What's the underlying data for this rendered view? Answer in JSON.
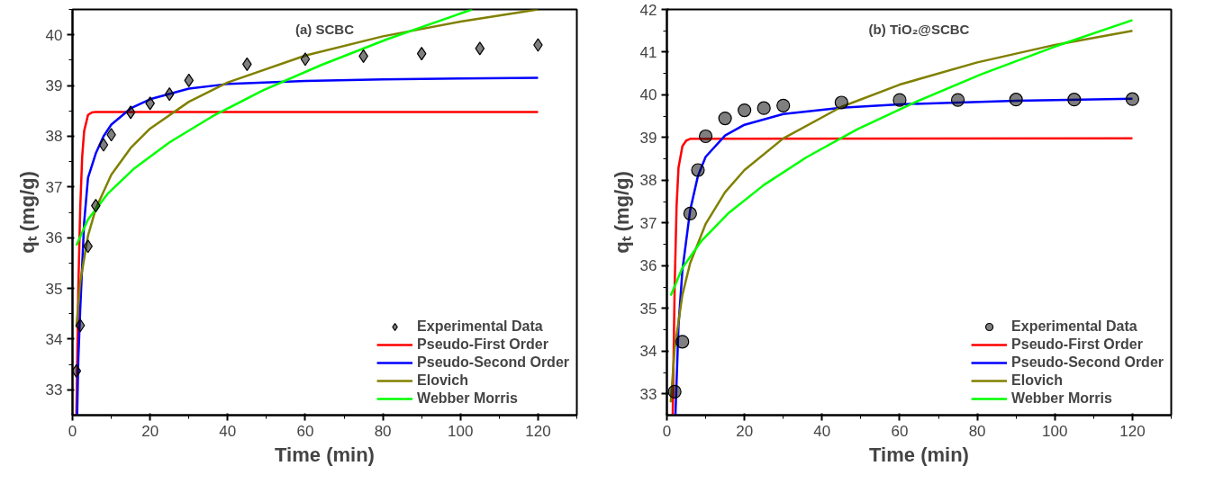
{
  "chart_data": [
    {
      "type": "line",
      "title": "(a) SCBC",
      "xlabel": "Time (min)",
      "ylabel": "qₜ (mg/g)",
      "xlim": [
        0,
        130
      ],
      "xticks": [
        0,
        20,
        40,
        60,
        80,
        100,
        120
      ],
      "ylim": [
        32.5,
        40.5
      ],
      "yticks": [
        33,
        34,
        35,
        36,
        37,
        38,
        39,
        40
      ],
      "grid": false,
      "legend": "bottom right",
      "series": [
        {
          "name": "Experimental Data",
          "type": "scatter",
          "marker": "diamond",
          "color": "#000000",
          "x": [
            1,
            2,
            4,
            6,
            8,
            10,
            15,
            20,
            25,
            30,
            45,
            60,
            75,
            90,
            105,
            120
          ],
          "values": [
            33.37,
            34.27,
            35.83,
            36.63,
            37.83,
            38.03,
            38.47,
            38.65,
            38.83,
            39.1,
            39.42,
            39.52,
            39.58,
            39.63,
            39.73,
            39.8
          ]
        },
        {
          "name": "Pseudo-First Order",
          "color": "#ff0000",
          "x": [
            1,
            1.5,
            2,
            2.5,
            3,
            4,
            5,
            6,
            120
          ],
          "values": [
            32.5,
            35.0,
            36.6,
            37.6,
            38.1,
            38.42,
            38.47,
            38.48,
            38.48
          ]
        },
        {
          "name": "Pseudo-Second Order",
          "color": "#0000ff",
          "x": [
            1.2,
            1.5,
            2,
            3,
            4,
            6,
            8,
            10,
            15,
            20,
            30,
            40,
            60,
            80,
            100,
            120
          ],
          "values": [
            32.5,
            33.6,
            34.6,
            36.3,
            37.18,
            37.66,
            38.0,
            38.23,
            38.55,
            38.73,
            38.94,
            39.03,
            39.09,
            39.12,
            39.14,
            39.15
          ]
        },
        {
          "name": "Elovich",
          "color": "#808000",
          "x": [
            1,
            2,
            4,
            6,
            10,
            15,
            20,
            30,
            40,
            60,
            80,
            100,
            120
          ],
          "values": [
            34.23,
            35.13,
            36.04,
            36.57,
            37.24,
            37.77,
            38.15,
            38.68,
            39.06,
            39.59,
            39.97,
            40.26,
            40.5
          ]
        },
        {
          "name": "Webber Morris",
          "color": "#00ff00",
          "x": [
            1,
            4,
            9,
            16,
            25,
            36,
            49,
            64,
            81,
            100,
            103
          ],
          "values": [
            35.85,
            36.36,
            36.86,
            37.37,
            37.88,
            38.39,
            38.9,
            39.4,
            39.91,
            40.42,
            40.5
          ]
        }
      ]
    },
    {
      "type": "line",
      "title": "(b) TiO₂@SCBC",
      "xlabel": "Time (min)",
      "ylabel": "qₜ (mg/g)",
      "xlim": [
        0,
        130
      ],
      "xticks": [
        0,
        20,
        40,
        60,
        80,
        100,
        120
      ],
      "ylim": [
        32.5,
        42
      ],
      "yticks": [
        33,
        34,
        35,
        36,
        37,
        38,
        39,
        40,
        41,
        42
      ],
      "grid": false,
      "legend": "bottom right",
      "series": [
        {
          "name": "Experimental Data",
          "type": "scatter",
          "marker": "circle",
          "color": "#000000",
          "x": [
            2,
            4,
            6,
            8,
            10,
            15,
            20,
            25,
            30,
            45,
            60,
            75,
            90,
            105,
            120
          ],
          "values": [
            33.05,
            34.22,
            37.22,
            38.24,
            39.03,
            39.45,
            39.64,
            39.69,
            39.75,
            39.82,
            39.88,
            39.88,
            39.89,
            39.89,
            39.9
          ]
        },
        {
          "name": "Pseudo-First Order",
          "color": "#ff0000",
          "x": [
            1.5,
            2,
            2.5,
            3,
            4,
            5,
            6,
            120
          ],
          "values": [
            32.5,
            35.5,
            37.4,
            38.3,
            38.8,
            38.93,
            38.97,
            38.98
          ]
        },
        {
          "name": "Pseudo-Second Order",
          "color": "#0000ff",
          "x": [
            2.2,
            3,
            4,
            6,
            8,
            10,
            15,
            20,
            30,
            45,
            60,
            90,
            120
          ],
          "values": [
            32.5,
            34.6,
            35.9,
            37.3,
            38.1,
            38.55,
            39.05,
            39.3,
            39.55,
            39.7,
            39.78,
            39.86,
            39.91
          ]
        },
        {
          "name": "Elovich",
          "color": "#808000",
          "x": [
            1,
            2,
            4,
            6,
            10,
            15,
            20,
            30,
            45,
            60,
            80,
            100,
            120
          ],
          "values": [
            32.8,
            34.06,
            35.32,
            36.06,
            36.98,
            37.72,
            38.24,
            38.98,
            39.72,
            40.24,
            40.76,
            41.17,
            41.5
          ]
        },
        {
          "name": "Webber Morris",
          "color": "#00ff00",
          "x": [
            1,
            4,
            9,
            16,
            25,
            36,
            49,
            64,
            81,
            100,
            120
          ],
          "values": [
            35.3,
            35.95,
            36.59,
            37.24,
            37.89,
            38.54,
            39.19,
            39.83,
            40.48,
            41.13,
            41.75
          ]
        }
      ]
    }
  ]
}
